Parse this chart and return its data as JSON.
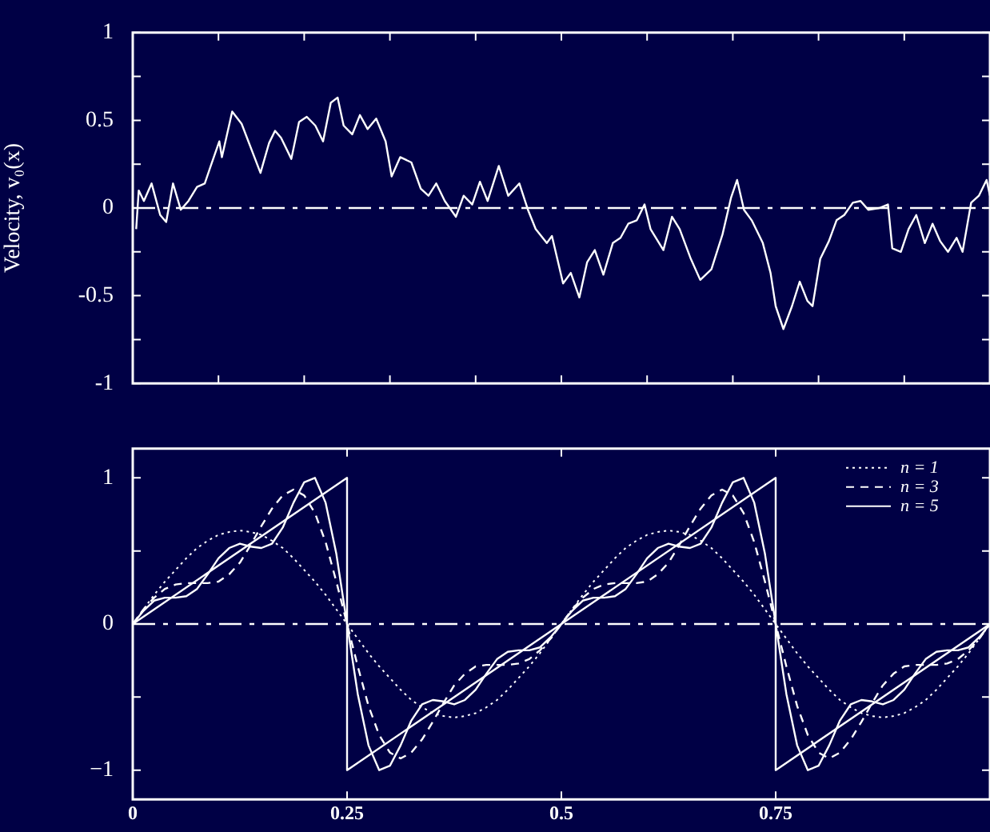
{
  "chart_data": [
    {
      "type": "line",
      "ylabel": "Velocity, v₀(x)",
      "xlim": [
        0,
        1
      ],
      "ylim": [
        -1,
        1
      ],
      "tick_labels": "y",
      "xticks": [
        {
          "value": 0,
          "label": null
        },
        {
          "value": 0.1,
          "label": null
        },
        {
          "value": 0.2,
          "label": null
        },
        {
          "value": 0.3,
          "label": null
        },
        {
          "value": 0.4,
          "label": null
        },
        {
          "value": 0.5,
          "label": null
        },
        {
          "value": 0.6,
          "label": null
        },
        {
          "value": 0.7,
          "label": null
        },
        {
          "value": 0.8,
          "label": null
        },
        {
          "value": 0.9,
          "label": null
        },
        {
          "value": 1,
          "label": null
        }
      ],
      "yticks": [
        -1,
        {
          "value": -0.75,
          "label": null
        },
        -0.5,
        {
          "value": -0.25,
          "label": null
        },
        0,
        {
          "value": 0.25,
          "label": null
        },
        0.5,
        {
          "value": 0.75,
          "label": null
        },
        1
      ],
      "ref_lines": [
        {
          "axis": "y",
          "value": 0,
          "label": null,
          "color": "#ffffff",
          "line_style": "dashed"
        }
      ],
      "series": [
        {
          "color": "#ffffff",
          "line_style": "solid",
          "x": [
            0.004,
            0.007,
            0.013,
            0.022,
            0.032,
            0.039,
            0.047,
            0.056,
            0.065,
            0.075,
            0.084,
            0.091,
            0.101,
            0.104,
            0.116,
            0.127,
            0.149,
            0.159,
            0.166,
            0.173,
            0.185,
            0.194,
            0.203,
            0.213,
            0.222,
            0.231,
            0.239,
            0.246,
            0.256,
            0.265,
            0.274,
            0.284,
            0.295,
            0.302,
            0.312,
            0.325,
            0.336,
            0.345,
            0.354,
            0.364,
            0.377,
            0.386,
            0.396,
            0.405,
            0.414,
            0.427,
            0.438,
            0.451,
            0.461,
            0.47,
            0.483,
            0.489,
            0.502,
            0.511,
            0.521,
            0.53,
            0.539,
            0.549,
            0.56,
            0.569,
            0.578,
            0.588,
            0.597,
            0.604,
            0.619,
            0.629,
            0.638,
            0.651,
            0.662,
            0.675,
            0.688,
            0.698,
            0.705,
            0.713,
            0.722,
            0.735,
            0.744,
            0.75,
            0.759,
            0.769,
            0.778,
            0.787,
            0.793,
            0.802,
            0.812,
            0.821,
            0.83,
            0.84,
            0.849,
            0.858,
            0.871,
            0.881,
            0.886,
            0.896,
            0.905,
            0.914,
            0.924,
            0.933,
            0.942,
            0.951,
            0.961,
            0.968,
            0.978,
            0.987,
            0.996,
            1
          ],
          "values": [
            -0.12,
            0.1,
            0.04,
            0.14,
            -0.04,
            -0.08,
            0.14,
            -0.01,
            0.04,
            0.12,
            0.14,
            0.24,
            0.38,
            0.29,
            0.55,
            0.48,
            0.2,
            0.37,
            0.44,
            0.4,
            0.28,
            0.49,
            0.52,
            0.47,
            0.38,
            0.6,
            0.63,
            0.47,
            0.42,
            0.53,
            0.45,
            0.51,
            0.38,
            0.18,
            0.29,
            0.26,
            0.11,
            0.07,
            0.14,
            0.04,
            -0.05,
            0.07,
            0.02,
            0.15,
            0.04,
            0.24,
            0.07,
            0.14,
            -0.01,
            -0.12,
            -0.2,
            -0.16,
            -0.43,
            -0.37,
            -0.51,
            -0.31,
            -0.24,
            -0.38,
            -0.2,
            -0.17,
            -0.09,
            -0.07,
            0.02,
            -0.12,
            -0.24,
            -0.05,
            -0.12,
            -0.29,
            -0.41,
            -0.35,
            -0.15,
            0.06,
            0.16,
            -0.01,
            -0.07,
            -0.2,
            -0.37,
            -0.56,
            -0.69,
            -0.56,
            -0.42,
            -0.53,
            -0.56,
            -0.29,
            -0.19,
            -0.07,
            -0.04,
            0.03,
            0.04,
            -0.01,
            0,
            0.02,
            -0.23,
            -0.25,
            -0.12,
            -0.04,
            -0.2,
            -0.09,
            -0.19,
            -0.25,
            -0.17,
            -0.25,
            0.03,
            0.07,
            0.16,
            0.07
          ]
        }
      ]
    },
    {
      "type": "line",
      "xlim": [
        0,
        1
      ],
      "ylim": [
        -1.2,
        1.2
      ],
      "legend": "top right",
      "xticks": [
        0,
        0.25,
        0.5,
        0.75
      ],
      "yticks": [
        {
          "value": -1,
          "label": "−1"
        },
        {
          "value": -0.5,
          "label": null
        },
        0,
        {
          "value": 0.5,
          "label": null
        },
        1
      ],
      "ref_lines": [
        {
          "axis": "y",
          "value": 0,
          "label": null,
          "color": "#ffffff",
          "line_style": "dashed"
        }
      ],
      "x": [
        0,
        0.0125,
        0.025,
        0.0375,
        0.05,
        0.0625,
        0.075,
        0.0875,
        0.1,
        0.1125,
        0.125,
        0.1375,
        0.15,
        0.1625,
        0.175,
        0.1875,
        0.2,
        0.2125,
        0.225,
        0.2375,
        0.25,
        0.2625,
        0.275,
        0.2875,
        0.3,
        0.3125,
        0.325,
        0.3375,
        0.35,
        0.3625,
        0.375,
        0.3875,
        0.4,
        0.4125,
        0.425,
        0.4375,
        0.45,
        0.4625,
        0.475,
        0.4875,
        0.5,
        0.5125,
        0.525,
        0.5375,
        0.55,
        0.5625,
        0.575,
        0.5875,
        0.6,
        0.6125,
        0.625,
        0.6375,
        0.65,
        0.6625,
        0.675,
        0.6875,
        0.7,
        0.7125,
        0.725,
        0.7375,
        0.75,
        0.7625,
        0.775,
        0.7875,
        0.8,
        0.8125,
        0.825,
        0.8375,
        0.85,
        0.8625,
        0.875,
        0.8875,
        0.9,
        0.9125,
        0.925,
        0.9375,
        0.95,
        0.9625,
        0.975,
        0.9875,
        1
      ],
      "series": [
        {
          "name": "n = 1",
          "color": "#ffffff",
          "line_style": "dotted",
          "values": [
            0,
            0.1,
            0.2,
            0.29,
            0.37,
            0.45,
            0.52,
            0.57,
            0.61,
            0.63,
            0.64,
            0.63,
            0.61,
            0.57,
            0.52,
            0.45,
            0.37,
            0.29,
            0.2,
            0.1,
            0,
            -0.1,
            -0.2,
            -0.29,
            -0.37,
            -0.45,
            -0.52,
            -0.57,
            -0.61,
            -0.63,
            -0.64,
            -0.63,
            -0.61,
            -0.57,
            -0.52,
            -0.45,
            -0.37,
            -0.29,
            -0.2,
            -0.1,
            0,
            0.1,
            0.2,
            0.29,
            0.37,
            0.45,
            0.52,
            0.57,
            0.61,
            0.63,
            0.64,
            0.63,
            0.61,
            0.57,
            0.52,
            0.45,
            0.37,
            0.29,
            0.2,
            0.1,
            0,
            -0.1,
            -0.2,
            -0.29,
            -0.37,
            -0.45,
            -0.52,
            -0.57,
            -0.61,
            -0.63,
            -0.64,
            -0.63,
            -0.61,
            -0.57,
            -0.52,
            -0.45,
            -0.37,
            -0.29,
            -0.2,
            -0.1,
            0
          ]
        },
        {
          "name": "n = 3",
          "color": "#ffffff",
          "line_style": "dashed",
          "values": [
            0,
            0.1,
            0.18,
            0.24,
            0.27,
            0.28,
            0.28,
            0.28,
            0.29,
            0.34,
            0.42,
            0.54,
            0.67,
            0.79,
            0.88,
            0.92,
            0.88,
            0.76,
            0.56,
            0.29,
            0,
            -0.29,
            -0.56,
            -0.76,
            -0.88,
            -0.92,
            -0.88,
            -0.79,
            -0.67,
            -0.54,
            -0.42,
            -0.34,
            -0.29,
            -0.28,
            -0.28,
            -0.28,
            -0.27,
            -0.24,
            -0.18,
            -0.1,
            0,
            0.1,
            0.18,
            0.24,
            0.27,
            0.28,
            0.28,
            0.28,
            0.29,
            0.34,
            0.42,
            0.54,
            0.67,
            0.79,
            0.88,
            0.92,
            0.88,
            0.76,
            0.56,
            0.29,
            0,
            -0.29,
            -0.56,
            -0.76,
            -0.88,
            -0.92,
            -0.88,
            -0.79,
            -0.67,
            -0.54,
            -0.42,
            -0.34,
            -0.29,
            -0.28,
            -0.28,
            -0.28,
            -0.27,
            -0.24,
            -0.18,
            -0.1,
            0
          ]
        },
        {
          "name": "n = 5",
          "color": "#ffffff",
          "line_style": "solid",
          "values": [
            0,
            0.09,
            0.16,
            0.18,
            0.18,
            0.19,
            0.24,
            0.34,
            0.45,
            0.52,
            0.55,
            0.53,
            0.52,
            0.55,
            0.66,
            0.83,
            0.97,
            1,
            0.83,
            0.48,
            0,
            -0.48,
            -0.83,
            -1,
            -0.97,
            -0.83,
            -0.66,
            -0.55,
            -0.52,
            -0.53,
            -0.55,
            -0.52,
            -0.45,
            -0.34,
            -0.24,
            -0.19,
            -0.18,
            -0.18,
            -0.16,
            -0.09,
            0,
            0.09,
            0.16,
            0.18,
            0.18,
            0.19,
            0.24,
            0.34,
            0.45,
            0.52,
            0.55,
            0.53,
            0.52,
            0.55,
            0.66,
            0.83,
            0.97,
            1,
            0.83,
            0.48,
            0,
            -0.48,
            -0.83,
            -1,
            -0.97,
            -0.83,
            -0.66,
            -0.55,
            -0.52,
            -0.53,
            -0.55,
            -0.52,
            -0.45,
            -0.34,
            -0.24,
            -0.19,
            -0.18,
            -0.18,
            -0.16,
            -0.09,
            0
          ]
        },
        {
          "color": "#ffffff",
          "line_style": "solid",
          "x": [
            0,
            0.25,
            0.25,
            0.75,
            0.75,
            1
          ],
          "values": [
            0,
            1,
            -1,
            1,
            -1,
            0
          ]
        }
      ]
    }
  ]
}
